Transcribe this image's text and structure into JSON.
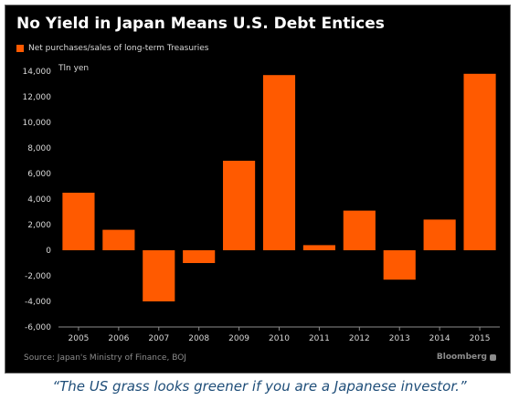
{
  "chart_data": {
    "type": "bar",
    "title": "No Yield in Japan Means U.S. Debt Entices",
    "unit_label": "Tln yen",
    "categories": [
      "2005",
      "2006",
      "2007",
      "2008",
      "2009",
      "2010",
      "2011",
      "2012",
      "2013",
      "2014",
      "2015"
    ],
    "series": [
      {
        "name": "Net purchases/sales of long-term Treasuries",
        "values": [
          4500,
          1600,
          -4000,
          -1000,
          7000,
          13700,
          400,
          3100,
          -2300,
          2400,
          13800
        ]
      }
    ],
    "ylim": [
      -6000,
      14000
    ],
    "yticks": [
      -6000,
      -4000,
      -2000,
      0,
      2000,
      4000,
      6000,
      8000,
      10000,
      12000,
      14000
    ],
    "ytick_labels": [
      "-6,000",
      "-4,000",
      "-2,000",
      "0",
      "2,000",
      "4,000",
      "6,000",
      "8,000",
      "10,000",
      "12,000",
      "14,000"
    ],
    "grid": false,
    "legend_position": "top-left",
    "bar_color": "#ff5a00",
    "background_color": "#000000",
    "source": "Source: Japan's Ministry of Finance, BOJ",
    "brand": "Bloomberg"
  },
  "caption": "“The US grass looks greener if you are a Japanese investor.”"
}
